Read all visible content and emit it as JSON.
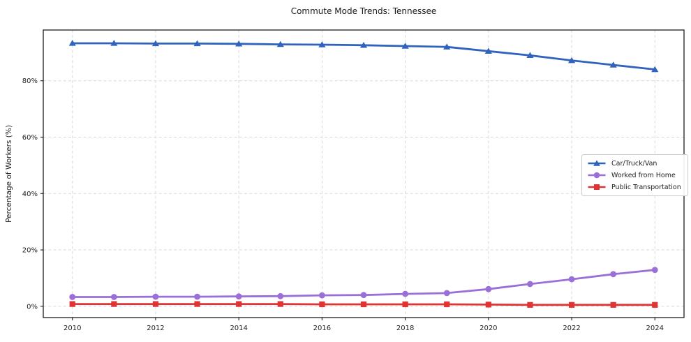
{
  "chart_data": {
    "type": "line",
    "title": "Commute Mode Trends: Tennessee",
    "xlabel": "",
    "ylabel": "Percentage of Workers (%)",
    "x": [
      2010,
      2011,
      2012,
      2013,
      2014,
      2015,
      2016,
      2017,
      2018,
      2019,
      2020,
      2021,
      2022,
      2023,
      2024
    ],
    "series": [
      {
        "name": "Car/Truck/Van",
        "marker": "triangle",
        "color": "#2f63be",
        "values": [
          93.3,
          93.3,
          93.2,
          93.2,
          93.1,
          92.9,
          92.8,
          92.6,
          92.3,
          92.0,
          90.5,
          89.0,
          87.2,
          85.6,
          84.0
        ]
      },
      {
        "name": "Worked from Home",
        "marker": "circle",
        "color": "#9a6fd8",
        "values": [
          3.3,
          3.3,
          3.4,
          3.4,
          3.5,
          3.6,
          3.9,
          4.0,
          4.4,
          4.7,
          6.1,
          7.9,
          9.6,
          11.4,
          12.9
        ]
      },
      {
        "name": "Public Transportation",
        "marker": "square",
        "color": "#e03434",
        "values": [
          0.8,
          0.8,
          0.8,
          0.8,
          0.8,
          0.8,
          0.7,
          0.7,
          0.7,
          0.7,
          0.6,
          0.5,
          0.5,
          0.5,
          0.5
        ]
      }
    ],
    "xticks": [
      "2010",
      "2012",
      "2014",
      "2016",
      "2018",
      "2020",
      "2022",
      "2024"
    ],
    "yticks": [
      {
        "value": 0,
        "label": "0%"
      },
      {
        "value": 20,
        "label": "20%"
      },
      {
        "value": 40,
        "label": "40%"
      },
      {
        "value": 60,
        "label": "60%"
      },
      {
        "value": 80,
        "label": "80%"
      }
    ],
    "xlim": [
      2009.3,
      2024.7
    ],
    "ylim": [
      -4,
      98
    ],
    "grid": true,
    "legend_position": "center-right",
    "grid_color": "#d9d9d9",
    "spine_color": "#1c1c1c",
    "text_color": "#1f1f1f"
  }
}
